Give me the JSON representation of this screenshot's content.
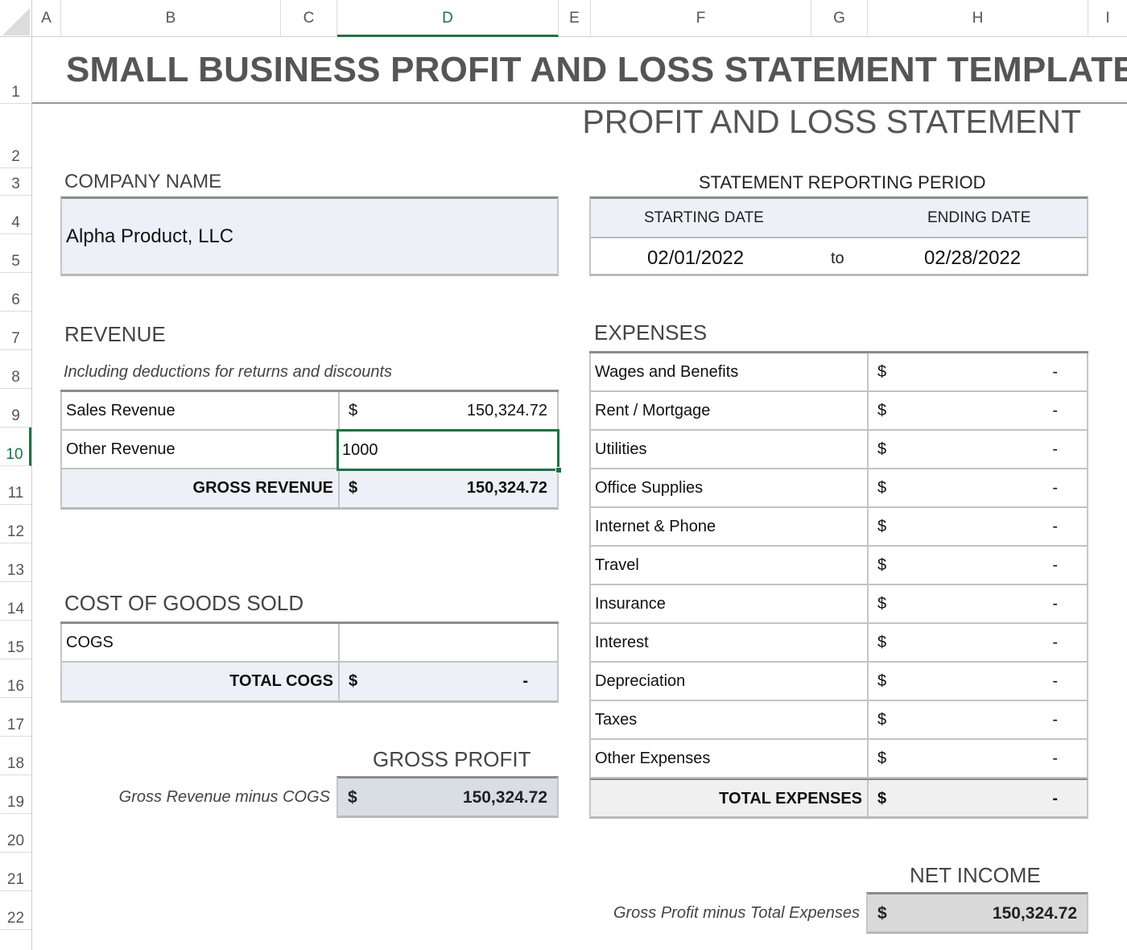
{
  "columns": [
    "A",
    "B",
    "C",
    "D",
    "E",
    "F",
    "G",
    "H",
    "I"
  ],
  "active_column": "D",
  "rows": [
    "1",
    "2",
    "3",
    "4",
    "5",
    "6",
    "7",
    "8",
    "9",
    "10",
    "11",
    "12",
    "13",
    "14",
    "15",
    "16",
    "17",
    "18",
    "19",
    "20",
    "21",
    "22"
  ],
  "active_row": "10",
  "accent_color": "#1e7145",
  "title": "SMALL BUSINESS PROFIT AND LOSS STATEMENT TEMPLATE",
  "subtitle": "PROFIT AND LOSS STATEMENT",
  "company": {
    "label": "COMPANY NAME",
    "value": "Alpha Product, LLC"
  },
  "period": {
    "label": "STATEMENT REPORTING PERIOD",
    "start_label": "STARTING DATE",
    "end_label": "ENDING DATE",
    "start": "02/01/2022",
    "to": "to",
    "end": "02/28/2022"
  },
  "revenue": {
    "label": "REVENUE",
    "note": "Including deductions for returns and discounts",
    "rows": [
      {
        "label": "Sales Revenue",
        "currency": "$",
        "value": "150,324.72"
      },
      {
        "label": "Other Revenue",
        "editing_value": "1000"
      }
    ],
    "total": {
      "label": "GROSS REVENUE",
      "currency": "$",
      "value": "150,324.72"
    }
  },
  "cogs": {
    "label": "COST OF GOODS SOLD",
    "row_label": "COGS",
    "total": {
      "label": "TOTAL COGS",
      "currency": "$",
      "value": "-"
    }
  },
  "gross_profit": {
    "label": "GROSS PROFIT",
    "note": "Gross Revenue minus COGS",
    "currency": "$",
    "value": "150,324.72"
  },
  "expenses": {
    "label": "EXPENSES",
    "rows": [
      {
        "label": "Wages and Benefits",
        "currency": "$",
        "value": "-"
      },
      {
        "label": "Rent / Mortgage",
        "currency": "$",
        "value": "-"
      },
      {
        "label": "Utilities",
        "currency": "$",
        "value": "-"
      },
      {
        "label": "Office Supplies",
        "currency": "$",
        "value": "-"
      },
      {
        "label": "Internet & Phone",
        "currency": "$",
        "value": "-"
      },
      {
        "label": "Travel",
        "currency": "$",
        "value": "-"
      },
      {
        "label": "Insurance",
        "currency": "$",
        "value": "-"
      },
      {
        "label": "Interest",
        "currency": "$",
        "value": "-"
      },
      {
        "label": "Depreciation",
        "currency": "$",
        "value": "-"
      },
      {
        "label": "Taxes",
        "currency": "$",
        "value": "-"
      },
      {
        "label": "Other Expenses",
        "currency": "$",
        "value": "-"
      }
    ],
    "total": {
      "label": "TOTAL EXPENSES",
      "currency": "$",
      "value": "-"
    }
  },
  "net_income": {
    "label": "NET INCOME",
    "note": "Gross Profit minus Total Expenses",
    "currency": "$",
    "value": "150,324.72"
  }
}
